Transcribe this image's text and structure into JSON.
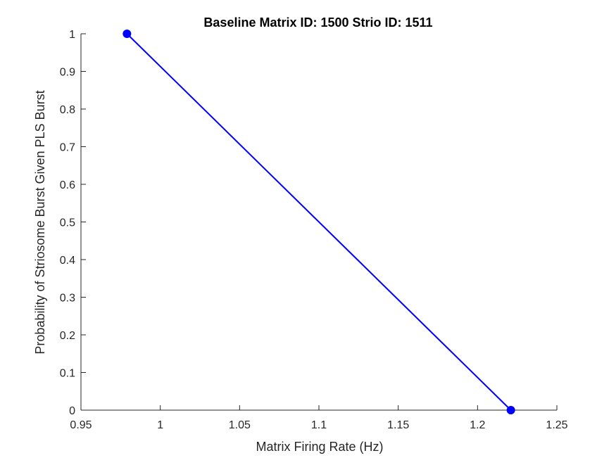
{
  "chart_data": {
    "type": "line",
    "title": "Baseline Matrix ID: 1500 Strio ID: 1511",
    "xlabel": "Matrix Firing Rate (Hz)",
    "ylabel": "Probability of Striosome Burst Given PLS Burst",
    "xlim": [
      0.95,
      1.25
    ],
    "ylim": [
      0,
      1
    ],
    "xticks": [
      "0.95",
      "1",
      "1.05",
      "1.1",
      "1.15",
      "1.2",
      "1.25"
    ],
    "yticks": [
      "0",
      "0.1",
      "0.2",
      "0.3",
      "0.4",
      "0.5",
      "0.6",
      "0.7",
      "0.8",
      "0.9",
      "1"
    ],
    "grid": false,
    "series": [
      {
        "x": [
          0.979,
          1.221
        ],
        "y": [
          1,
          0
        ],
        "color": "#0000ff",
        "marker": "circle"
      }
    ]
  }
}
